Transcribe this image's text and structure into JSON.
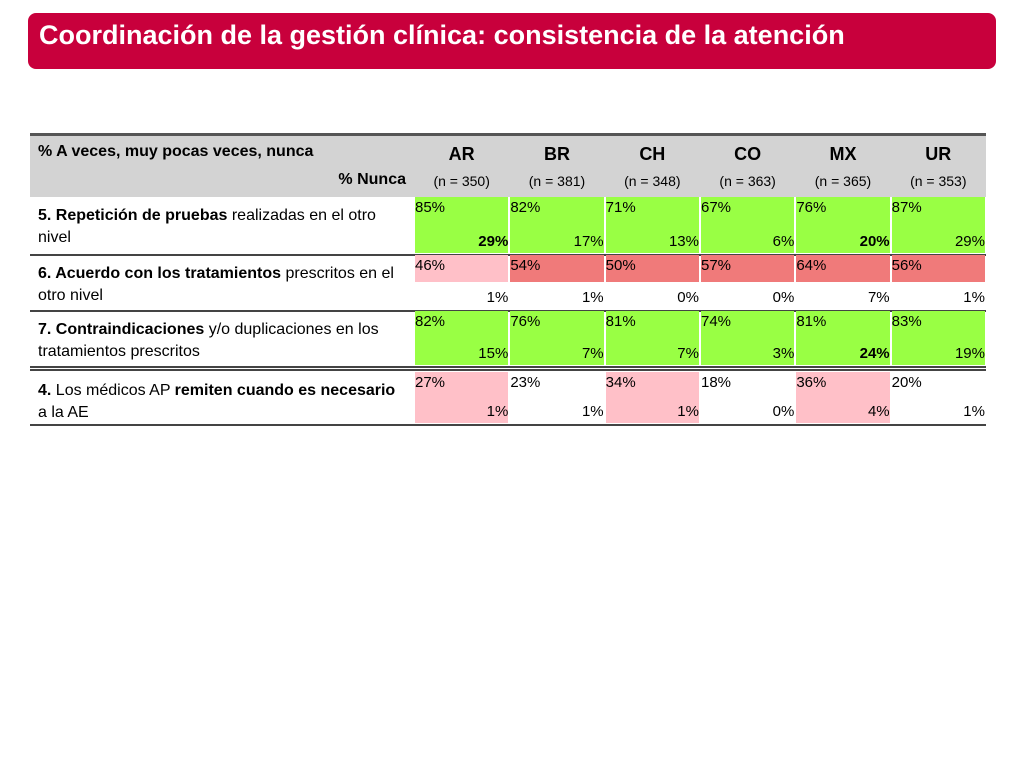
{
  "title": "Coordinación de la gestión clínica: consistencia de la atención",
  "table": {
    "header": {
      "line1": "% A veces, muy pocas veces, nunca",
      "line2": "% Nunca",
      "columns": [
        {
          "name": "AR",
          "n": "(n = 350)"
        },
        {
          "name": "BR",
          "n": "(n = 381)"
        },
        {
          "name": "CH",
          "n": "(n = 348)"
        },
        {
          "name": "CO",
          "n": "(n = 363)"
        },
        {
          "name": "MX",
          "n": "(n = 365)"
        },
        {
          "name": "UR",
          "n": "(n = 353)"
        }
      ]
    },
    "rows": [
      {
        "label": [
          {
            "text": "5. Repetición de pruebas",
            "bold": true
          },
          {
            "text": " realizadas en el otro nivel",
            "bold": false
          }
        ],
        "cells": [
          {
            "top": "85%",
            "bottom": "29%",
            "colors": [
              "#99ff44",
              "#99ff44"
            ],
            "bold": true
          },
          {
            "top": "82%",
            "bottom": "17%",
            "colors": [
              "#99ff44",
              "#99ff44"
            ],
            "bold": false
          },
          {
            "top": "71%",
            "bottom": "13%",
            "colors": [
              "#99ff44",
              "#99ff44"
            ],
            "bold": false
          },
          {
            "top": "67%",
            "bottom": "6%",
            "colors": [
              "#99ff44",
              "#99ff44"
            ],
            "bold": false
          },
          {
            "top": "76%",
            "bottom": "20%",
            "colors": [
              "#99ff44",
              "#99ff44"
            ],
            "bold": true
          },
          {
            "top": "87%",
            "bottom": "29%",
            "colors": [
              "#99ff44",
              "#99ff44"
            ],
            "bold": false
          }
        ]
      },
      {
        "label": [
          {
            "text": "6. Acuerdo con los tratamientos",
            "bold": true
          },
          {
            "text": " prescritos en el otro nivel",
            "bold": false
          }
        ],
        "cells": [
          {
            "top": "46%",
            "bottom": "1%",
            "colors": [
              "#ffc0c8",
              "#ffffff"
            ],
            "bold": false
          },
          {
            "top": "54%",
            "bottom": "1%",
            "colors": [
              "#f07a7a",
              "#ffffff"
            ],
            "bold": false
          },
          {
            "top": "50%",
            "bottom": "0%",
            "colors": [
              "#f07a7a",
              "#ffffff"
            ],
            "bold": false
          },
          {
            "top": "57%",
            "bottom": "0%",
            "colors": [
              "#f07a7a",
              "#ffffff"
            ],
            "bold": false
          },
          {
            "top": "64%",
            "bottom": "7%",
            "colors": [
              "#f07a7a",
              "#ffffff"
            ],
            "bold": false
          },
          {
            "top": "56%",
            "bottom": "1%",
            "colors": [
              "#f07a7a",
              "#ffffff"
            ],
            "bold": false
          }
        ]
      },
      {
        "label": [
          {
            "text": "7. Contraindicaciones",
            "bold": true
          },
          {
            "text": " y/o duplicaciones en los tratamientos prescritos",
            "bold": false
          }
        ],
        "cells": [
          {
            "top": "82%",
            "bottom": "15%",
            "colors": [
              "#99ff44",
              "#99ff44"
            ],
            "bold": false
          },
          {
            "top": "76%",
            "bottom": "7%",
            "colors": [
              "#99ff44",
              "#99ff44"
            ],
            "bold": false
          },
          {
            "top": "81%",
            "bottom": "7%",
            "colors": [
              "#99ff44",
              "#99ff44"
            ],
            "bold": false
          },
          {
            "top": "74%",
            "bottom": "3%",
            "colors": [
              "#99ff44",
              "#99ff44"
            ],
            "bold": false
          },
          {
            "top": "81%",
            "bottom": "24%",
            "colors": [
              "#99ff44",
              "#99ff44"
            ],
            "bold": true
          },
          {
            "top": "83%",
            "bottom": "19%",
            "colors": [
              "#99ff44",
              "#99ff44"
            ],
            "bold": false
          }
        ]
      },
      {
        "label": [
          {
            "text": "4.",
            "bold": true
          },
          {
            "text": " Los médicos AP ",
            "bold": false
          },
          {
            "text": "remiten cuando es necesario",
            "bold": true
          },
          {
            "text": " a la AE",
            "bold": false
          }
        ],
        "cells": [
          {
            "top": "27%",
            "bottom": "1%",
            "colors": [
              "#ffc0c8",
              "#ffc0c8"
            ],
            "bold": false
          },
          {
            "top": "23%",
            "bottom": "1%",
            "colors": [
              "#ffffff",
              "#ffffff"
            ],
            "bold": false
          },
          {
            "top": "34%",
            "bottom": "1%",
            "colors": [
              "#ffc0c8",
              "#ffc0c8"
            ],
            "bold": false
          },
          {
            "top": "18%",
            "bottom": "0%",
            "colors": [
              "#ffffff",
              "#ffffff"
            ],
            "bold": false
          },
          {
            "top": "36%",
            "bottom": "4%",
            "colors": [
              "#ffc0c8",
              "#ffc0c8"
            ],
            "bold": false
          },
          {
            "top": "20%",
            "bottom": "1%",
            "colors": [
              "#ffffff",
              "#ffffff"
            ],
            "bold": false
          }
        ]
      }
    ]
  }
}
